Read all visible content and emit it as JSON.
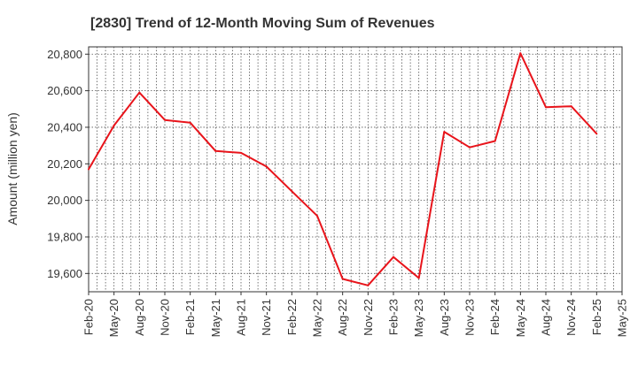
{
  "chart_data": {
    "type": "line",
    "title": "[2830]  Trend of 12-Month Moving Sum of Revenues",
    "xlabel": "",
    "ylabel": "Amount (million yen)",
    "ylim": [
      19500,
      20840
    ],
    "yticks": [
      19600,
      19800,
      20000,
      20200,
      20400,
      20600,
      20800
    ],
    "ytick_labels": [
      "19,600",
      "19,800",
      "20,000",
      "20,200",
      "20,400",
      "20,600",
      "20,800"
    ],
    "categories": [
      "Feb-20",
      "May-20",
      "Aug-20",
      "Nov-20",
      "Feb-21",
      "May-21",
      "Aug-21",
      "Nov-21",
      "Feb-22",
      "May-22",
      "Aug-22",
      "Nov-22",
      "Feb-23",
      "May-23",
      "Aug-23",
      "Nov-23",
      "Feb-24",
      "May-24",
      "Aug-24",
      "Nov-24",
      "Feb-25",
      "May-25"
    ],
    "series": [
      {
        "color": "#e8141b",
        "values": [
          20170,
          20410,
          20590,
          20440,
          20425,
          20270,
          20260,
          20185,
          20050,
          19915,
          19570,
          19535,
          19690,
          19575,
          20375,
          20290,
          20325,
          20805,
          20510,
          20515,
          20365,
          null
        ]
      }
    ],
    "grid": true,
    "legend": "none"
  }
}
